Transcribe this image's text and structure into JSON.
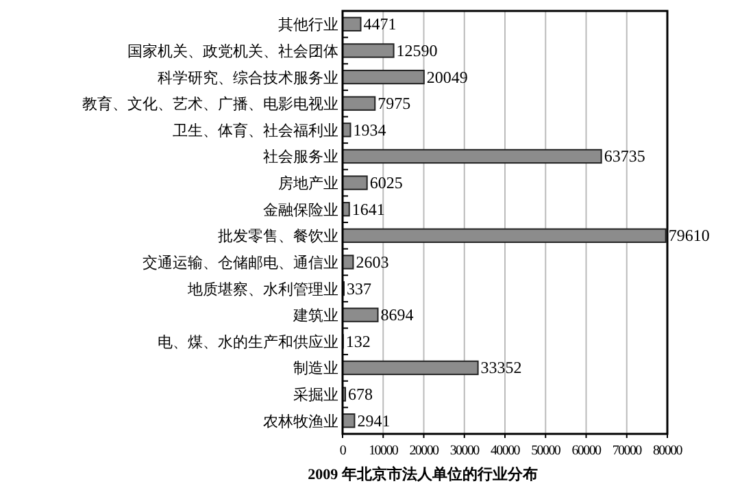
{
  "chart_data": {
    "type": "bar",
    "orientation": "horizontal",
    "title": "2009 年北京市法人单位的行业分布",
    "categories": [
      "其他行业",
      "国家机关、政党机关、社会团体",
      "科学研究、综合技术服务业",
      "教育、文化、艺术、广播、电影电视业",
      "卫生、体育、社会福利业",
      "社会服务业",
      "房地产业",
      "金融保险业",
      "批发零售、餐饮业",
      "交通运输、仓储邮电、通信业",
      "地质堪察、水利管理业",
      "建筑业",
      "电、煤、水的生产和供应业",
      "制造业",
      "采掘业",
      "农林牧渔业"
    ],
    "values": [
      4471,
      12590,
      20049,
      7975,
      1934,
      63735,
      6025,
      1641,
      79610,
      2603,
      337,
      8694,
      132,
      33352,
      678,
      2941
    ],
    "color": "#8c8c8c",
    "data_labels": true,
    "xlim": [
      0,
      80000
    ],
    "xticks": [
      0,
      10000,
      20000,
      30000,
      40000,
      50000,
      60000,
      70000,
      80000
    ],
    "grid": "x"
  }
}
